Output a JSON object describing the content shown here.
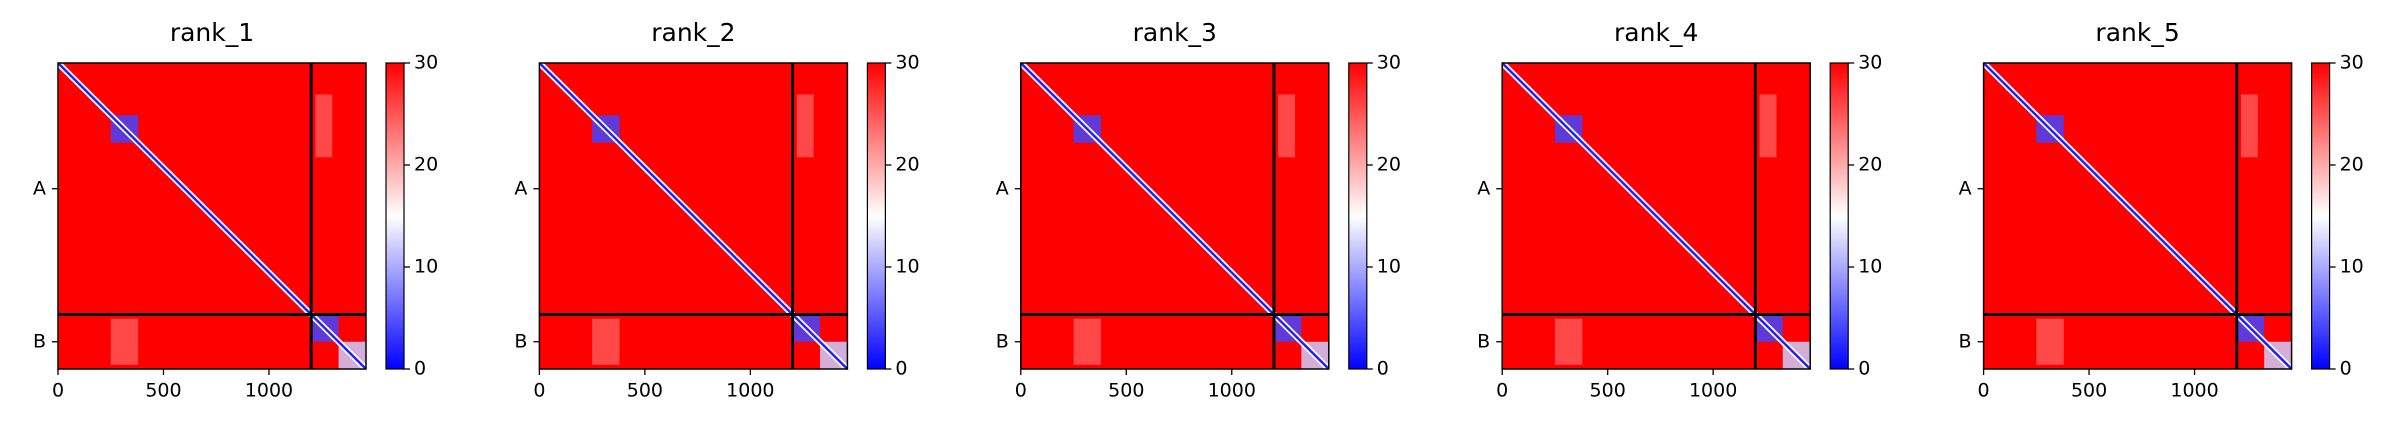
{
  "chart_data": [
    {
      "type": "heatmap",
      "title": "rank_1",
      "xlim": [
        0,
        1460
      ],
      "xticks": [
        0,
        500,
        1000
      ],
      "ylim": [
        0,
        1460
      ],
      "yticks": [
        {
          "value": 600,
          "label": "A"
        },
        {
          "value": 1330,
          "label": "B"
        }
      ],
      "boundary": 1200,
      "clim": [
        0,
        30
      ],
      "cticks": [
        0,
        10,
        20,
        30
      ],
      "colormap": [
        "#0000ff",
        "#ffffff",
        "#ff0000"
      ],
      "background_value": 30,
      "diagonal_value": 2,
      "blocks": [
        {
          "x": [
            250,
            380
          ],
          "y": [
            250,
            380
          ],
          "value": 4
        },
        {
          "x": [
            1200,
            1330
          ],
          "y": [
            1200,
            1330
          ],
          "value": 4
        },
        {
          "x": [
            1330,
            1460
          ],
          "y": [
            1330,
            1460
          ],
          "value": 12
        },
        {
          "x": [
            250,
            380
          ],
          "y": [
            1220,
            1440
          ],
          "value": 25
        },
        {
          "x": [
            1220,
            1300
          ],
          "y": [
            150,
            450
          ],
          "value": 25
        }
      ]
    },
    {
      "type": "heatmap",
      "title": "rank_2",
      "xlim": [
        0,
        1460
      ],
      "xticks": [
        0,
        500,
        1000
      ],
      "ylim": [
        0,
        1460
      ],
      "yticks": [
        {
          "value": 600,
          "label": "A"
        },
        {
          "value": 1330,
          "label": "B"
        }
      ],
      "boundary": 1200,
      "clim": [
        0,
        30
      ],
      "cticks": [
        0,
        10,
        20,
        30
      ],
      "colormap": [
        "#0000ff",
        "#ffffff",
        "#ff0000"
      ],
      "background_value": 30,
      "diagonal_value": 2,
      "blocks": [
        {
          "x": [
            250,
            380
          ],
          "y": [
            250,
            380
          ],
          "value": 4
        },
        {
          "x": [
            1200,
            1330
          ],
          "y": [
            1200,
            1330
          ],
          "value": 4
        },
        {
          "x": [
            1330,
            1460
          ],
          "y": [
            1330,
            1460
          ],
          "value": 12
        },
        {
          "x": [
            250,
            380
          ],
          "y": [
            1220,
            1440
          ],
          "value": 25
        },
        {
          "x": [
            1220,
            1300
          ],
          "y": [
            150,
            450
          ],
          "value": 25
        }
      ]
    },
    {
      "type": "heatmap",
      "title": "rank_3",
      "xlim": [
        0,
        1460
      ],
      "xticks": [
        0,
        500,
        1000
      ],
      "ylim": [
        0,
        1460
      ],
      "yticks": [
        {
          "value": 600,
          "label": "A"
        },
        {
          "value": 1330,
          "label": "B"
        }
      ],
      "boundary": 1200,
      "clim": [
        0,
        30
      ],
      "cticks": [
        0,
        10,
        20,
        30
      ],
      "colormap": [
        "#0000ff",
        "#ffffff",
        "#ff0000"
      ],
      "background_value": 30,
      "diagonal_value": 2,
      "blocks": [
        {
          "x": [
            250,
            380
          ],
          "y": [
            250,
            380
          ],
          "value": 4
        },
        {
          "x": [
            1200,
            1330
          ],
          "y": [
            1200,
            1330
          ],
          "value": 4
        },
        {
          "x": [
            1330,
            1460
          ],
          "y": [
            1330,
            1460
          ],
          "value": 12
        },
        {
          "x": [
            250,
            380
          ],
          "y": [
            1220,
            1440
          ],
          "value": 25
        },
        {
          "x": [
            1220,
            1300
          ],
          "y": [
            150,
            450
          ],
          "value": 25
        }
      ]
    },
    {
      "type": "heatmap",
      "title": "rank_4",
      "xlim": [
        0,
        1460
      ],
      "xticks": [
        0,
        500,
        1000
      ],
      "ylim": [
        0,
        1460
      ],
      "yticks": [
        {
          "value": 600,
          "label": "A"
        },
        {
          "value": 1330,
          "label": "B"
        }
      ],
      "boundary": 1200,
      "clim": [
        0,
        30
      ],
      "cticks": [
        0,
        10,
        20,
        30
      ],
      "colormap": [
        "#0000ff",
        "#ffffff",
        "#ff0000"
      ],
      "background_value": 30,
      "diagonal_value": 2,
      "blocks": [
        {
          "x": [
            250,
            380
          ],
          "y": [
            250,
            380
          ],
          "value": 4
        },
        {
          "x": [
            1200,
            1330
          ],
          "y": [
            1200,
            1330
          ],
          "value": 4
        },
        {
          "x": [
            1330,
            1460
          ],
          "y": [
            1330,
            1460
          ],
          "value": 12
        },
        {
          "x": [
            250,
            380
          ],
          "y": [
            1220,
            1440
          ],
          "value": 25
        },
        {
          "x": [
            1220,
            1300
          ],
          "y": [
            150,
            450
          ],
          "value": 25
        }
      ]
    },
    {
      "type": "heatmap",
      "title": "rank_5",
      "xlim": [
        0,
        1460
      ],
      "xticks": [
        0,
        500,
        1000
      ],
      "ylim": [
        0,
        1460
      ],
      "yticks": [
        {
          "value": 600,
          "label": "A"
        },
        {
          "value": 1330,
          "label": "B"
        }
      ],
      "boundary": 1200,
      "clim": [
        0,
        30
      ],
      "cticks": [
        0,
        10,
        20,
        30
      ],
      "colormap": [
        "#0000ff",
        "#ffffff",
        "#ff0000"
      ],
      "background_value": 30,
      "diagonal_value": 2,
      "blocks": [
        {
          "x": [
            250,
            380
          ],
          "y": [
            250,
            380
          ],
          "value": 4
        },
        {
          "x": [
            1200,
            1330
          ],
          "y": [
            1200,
            1330
          ],
          "value": 4
        },
        {
          "x": [
            1330,
            1460
          ],
          "y": [
            1330,
            1460
          ],
          "value": 12
        },
        {
          "x": [
            250,
            380
          ],
          "y": [
            1220,
            1440
          ],
          "value": 25
        },
        {
          "x": [
            1220,
            1300
          ],
          "y": [
            150,
            450
          ],
          "value": 25
        }
      ]
    }
  ]
}
